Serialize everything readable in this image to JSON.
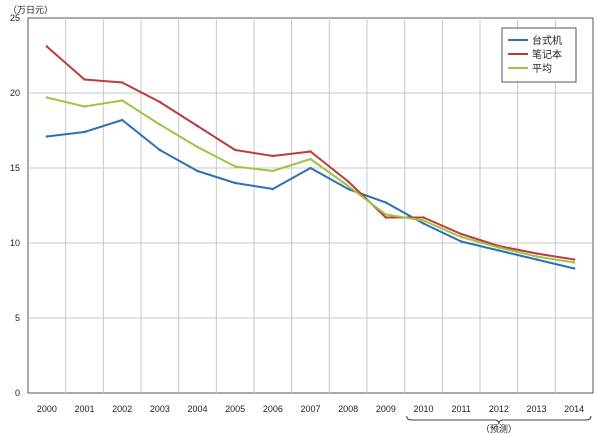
{
  "chart_data": {
    "type": "line",
    "title": "",
    "xlabel": "",
    "ylabel": "（万日元）",
    "ylim": [
      0,
      25
    ],
    "yticks": [
      0,
      5,
      10,
      15,
      20,
      25
    ],
    "grid": true,
    "legend_position": "top-right",
    "forecast_label": "（预测）",
    "forecast_range": [
      "2010",
      "2014"
    ],
    "x": [
      "2000",
      "2001",
      "2002",
      "2003",
      "2004",
      "2005",
      "2006",
      "2007",
      "2008",
      "2009",
      "2010",
      "2011",
      "2012",
      "2013",
      "2014"
    ],
    "series": [
      {
        "name": "台式机",
        "color": "#2e6fb5",
        "values": [
          17.1,
          17.4,
          18.2,
          16.2,
          14.8,
          14.0,
          13.6,
          15.0,
          13.6,
          12.7,
          11.3,
          10.1,
          9.5,
          8.9,
          8.3
        ]
      },
      {
        "name": "笔记本",
        "color": "#bf3b3b",
        "values": [
          23.1,
          20.9,
          20.7,
          19.4,
          17.8,
          16.2,
          15.8,
          16.1,
          14.1,
          11.7,
          11.7,
          10.6,
          9.8,
          9.3,
          8.9
        ]
      },
      {
        "name": "平均",
        "color": "#9dc443",
        "values": [
          19.7,
          19.1,
          19.5,
          17.9,
          16.4,
          15.1,
          14.8,
          15.6,
          13.8,
          11.9,
          11.5,
          10.4,
          9.7,
          9.1,
          8.7
        ]
      }
    ]
  }
}
